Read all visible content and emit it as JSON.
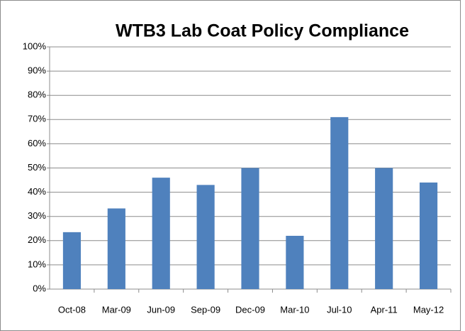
{
  "chart_data": {
    "type": "bar",
    "title": "WTB3 Lab Coat Policy Compliance",
    "categories": [
      "Oct-08",
      "Mar-09",
      "Jun-09",
      "Sep-09",
      "Dec-09",
      "Mar-10",
      "Jul-10",
      "Apr-11",
      "May-12"
    ],
    "values": [
      23.5,
      33.3,
      46,
      43,
      50,
      22,
      71,
      50,
      44
    ],
    "color": "#4f81bd",
    "ylim": [
      0,
      100
    ],
    "yticks": [
      {
        "value": 0,
        "label": "0%"
      },
      {
        "value": 10,
        "label": "10%"
      },
      {
        "value": 20,
        "label": "20%"
      },
      {
        "value": 30,
        "label": "30%"
      },
      {
        "value": 40,
        "label": "40%"
      },
      {
        "value": 50,
        "label": "50%"
      },
      {
        "value": 60,
        "label": "60%"
      },
      {
        "value": 70,
        "label": "70%"
      },
      {
        "value": 80,
        "label": "80%"
      },
      {
        "value": 90,
        "label": "90%"
      },
      {
        "value": 100,
        "label": "100%"
      }
    ],
    "grid": true
  }
}
